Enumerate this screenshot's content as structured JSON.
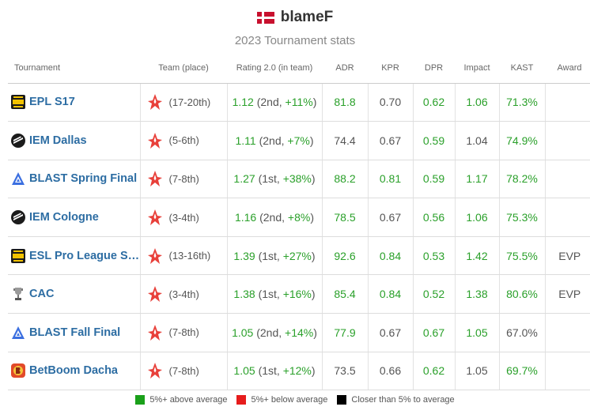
{
  "player": {
    "name": "blameF",
    "flag": "denmark-flag"
  },
  "subtitle": "2023 Tournament stats",
  "columns": {
    "tournament": "Tournament",
    "team": "Team (place)",
    "rating": "Rating 2.0 (in team)",
    "adr": "ADR",
    "kpr": "KPR",
    "dpr": "DPR",
    "impact": "Impact",
    "kast": "KAST",
    "award": "Award"
  },
  "colors": {
    "above": "#2aa02a",
    "below": "#e02020",
    "neutral": "#000000",
    "link": "#2d6da3"
  },
  "rows": [
    {
      "tournament": "EPL S17",
      "icon": "esl-pro-league-icon",
      "team_icon": "astralis-logo-icon",
      "place": "(17-20th)",
      "rating": "1.12",
      "rating_meta": "(2nd, ",
      "rating_diff": "+11%",
      "rating_close": ")",
      "adr": "81.8",
      "adr_c": "g",
      "kpr": "0.70",
      "kpr_c": "n",
      "dpr": "0.62",
      "dpr_c": "g",
      "impact": "1.06",
      "impact_c": "g",
      "kast": "71.3%",
      "kast_c": "g",
      "award": ""
    },
    {
      "tournament": "IEM Dallas",
      "icon": "iem-icon",
      "team_icon": "astralis-logo-icon",
      "place": "(5-6th)",
      "rating": "1.11",
      "rating_meta": "(2nd, ",
      "rating_diff": "+7%",
      "rating_close": ")",
      "adr": "74.4",
      "adr_c": "n",
      "kpr": "0.67",
      "kpr_c": "n",
      "dpr": "0.59",
      "dpr_c": "g",
      "impact": "1.04",
      "impact_c": "n",
      "kast": "74.9%",
      "kast_c": "g",
      "award": ""
    },
    {
      "tournament": "BLAST Spring Final",
      "icon": "blast-icon",
      "team_icon": "astralis-logo-icon",
      "place": "(7-8th)",
      "rating": "1.27",
      "rating_meta": "(1st, ",
      "rating_diff": "+38%",
      "rating_close": ")",
      "adr": "88.2",
      "adr_c": "g",
      "kpr": "0.81",
      "kpr_c": "g",
      "dpr": "0.59",
      "dpr_c": "g",
      "impact": "1.17",
      "impact_c": "g",
      "kast": "78.2%",
      "kast_c": "g",
      "award": ""
    },
    {
      "tournament": "IEM Cologne",
      "icon": "iem-icon",
      "team_icon": "astralis-logo-icon",
      "place": "(3-4th)",
      "rating": "1.16",
      "rating_meta": "(2nd, ",
      "rating_diff": "+8%",
      "rating_close": ")",
      "adr": "78.5",
      "adr_c": "g",
      "kpr": "0.67",
      "kpr_c": "n",
      "dpr": "0.56",
      "dpr_c": "g",
      "impact": "1.06",
      "impact_c": "g",
      "kast": "75.3%",
      "kast_c": "g",
      "award": ""
    },
    {
      "tournament": "ESL Pro League S…",
      "icon": "esl-pro-league-icon",
      "team_icon": "astralis-logo-icon",
      "place": "(13-16th)",
      "rating": "1.39",
      "rating_meta": "(1st, ",
      "rating_diff": "+27%",
      "rating_close": ")",
      "adr": "92.6",
      "adr_c": "g",
      "kpr": "0.84",
      "kpr_c": "g",
      "dpr": "0.53",
      "dpr_c": "g",
      "impact": "1.42",
      "impact_c": "g",
      "kast": "75.5%",
      "kast_c": "g",
      "award": "EVP"
    },
    {
      "tournament": "CAC",
      "icon": "trophy-icon",
      "team_icon": "astralis-logo-icon",
      "place": "(3-4th)",
      "rating": "1.38",
      "rating_meta": "(1st, ",
      "rating_diff": "+16%",
      "rating_close": ")",
      "adr": "85.4",
      "adr_c": "g",
      "kpr": "0.84",
      "kpr_c": "g",
      "dpr": "0.52",
      "dpr_c": "g",
      "impact": "1.38",
      "impact_c": "g",
      "kast": "80.6%",
      "kast_c": "g",
      "award": "EVP"
    },
    {
      "tournament": "BLAST Fall Final",
      "icon": "blast-icon",
      "team_icon": "astralis-logo-icon",
      "place": "(7-8th)",
      "rating": "1.05",
      "rating_meta": "(2nd, ",
      "rating_diff": "+14%",
      "rating_close": ")",
      "adr": "77.9",
      "adr_c": "g",
      "kpr": "0.67",
      "kpr_c": "n",
      "dpr": "0.67",
      "dpr_c": "g",
      "impact": "1.05",
      "impact_c": "g",
      "kast": "67.0%",
      "kast_c": "n",
      "award": ""
    },
    {
      "tournament": "BetBoom Dacha",
      "icon": "betboom-icon",
      "team_icon": "astralis-logo-icon",
      "place": "(7-8th)",
      "rating": "1.05",
      "rating_meta": "(1st, ",
      "rating_diff": "+12%",
      "rating_close": ")",
      "adr": "73.5",
      "adr_c": "n",
      "kpr": "0.66",
      "kpr_c": "n",
      "dpr": "0.62",
      "dpr_c": "g",
      "impact": "1.05",
      "impact_c": "n",
      "kast": "69.7%",
      "kast_c": "g",
      "award": ""
    }
  ],
  "legend": [
    {
      "label": "5%+ above average",
      "color": "#1aa01a"
    },
    {
      "label": "5%+ below average",
      "color": "#e61c1c"
    },
    {
      "label": "Closer than 5% to average",
      "color": "#000000"
    }
  ]
}
